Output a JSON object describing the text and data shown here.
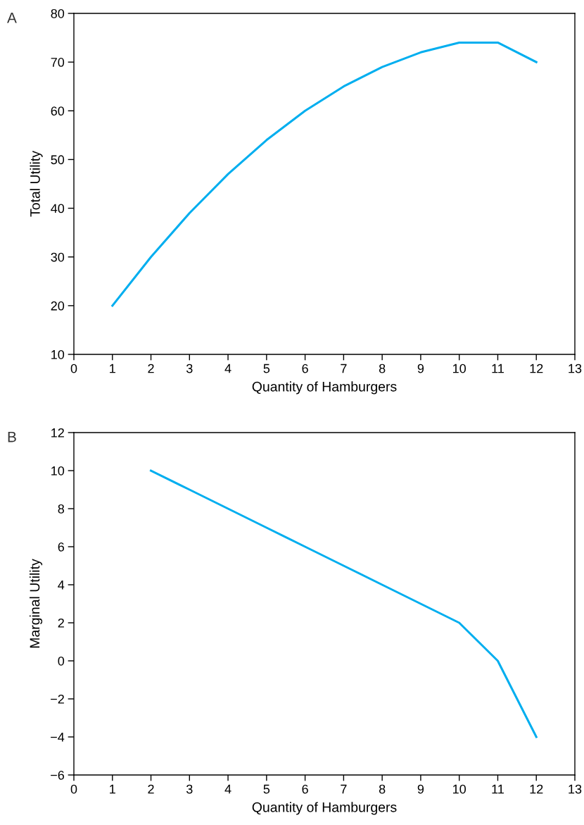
{
  "chart_data": [
    {
      "type": "line",
      "title": "A",
      "xlabel": "Quantity of Hamburgers",
      "ylabel": "Total Utility",
      "x": [
        1,
        2,
        3,
        4,
        5,
        6,
        7,
        8,
        9,
        10,
        11,
        12
      ],
      "series": [
        {
          "color": "#00aeef",
          "values": [
            20,
            30,
            39,
            47,
            54,
            60,
            65,
            69,
            72,
            74,
            74,
            70
          ]
        }
      ],
      "xlim": [
        0,
        13
      ],
      "xticks": [
        0,
        1,
        2,
        3,
        4,
        5,
        6,
        7,
        8,
        9,
        10,
        11,
        12,
        13
      ],
      "ylim": [
        10,
        80
      ],
      "yticks": [
        10,
        20,
        30,
        40,
        50,
        60,
        70,
        80
      ],
      "grid": false,
      "marker": "none",
      "line_style": "solid"
    },
    {
      "type": "line",
      "title": "B",
      "xlabel": "Quantity of Hamburgers",
      "ylabel": "Marginal Utility",
      "x": [
        2,
        3,
        4,
        5,
        6,
        7,
        8,
        9,
        10,
        11,
        12
      ],
      "series": [
        {
          "color": "#00aeef",
          "values": [
            10,
            9,
            8,
            7,
            6,
            5,
            4,
            3,
            2,
            0,
            -4
          ]
        }
      ],
      "xlim": [
        0,
        13
      ],
      "xticks": [
        0,
        1,
        2,
        3,
        4,
        5,
        6,
        7,
        8,
        9,
        10,
        11,
        12,
        13
      ],
      "ylim": [
        -6,
        12
      ],
      "yticks": [
        {
          "value": -6,
          "label": "−6"
        },
        {
          "value": -4,
          "label": "−4"
        },
        {
          "value": -2,
          "label": "−2"
        },
        0,
        2,
        4,
        6,
        8,
        10,
        12
      ],
      "grid": false,
      "marker": "none",
      "line_style": "solid"
    }
  ]
}
